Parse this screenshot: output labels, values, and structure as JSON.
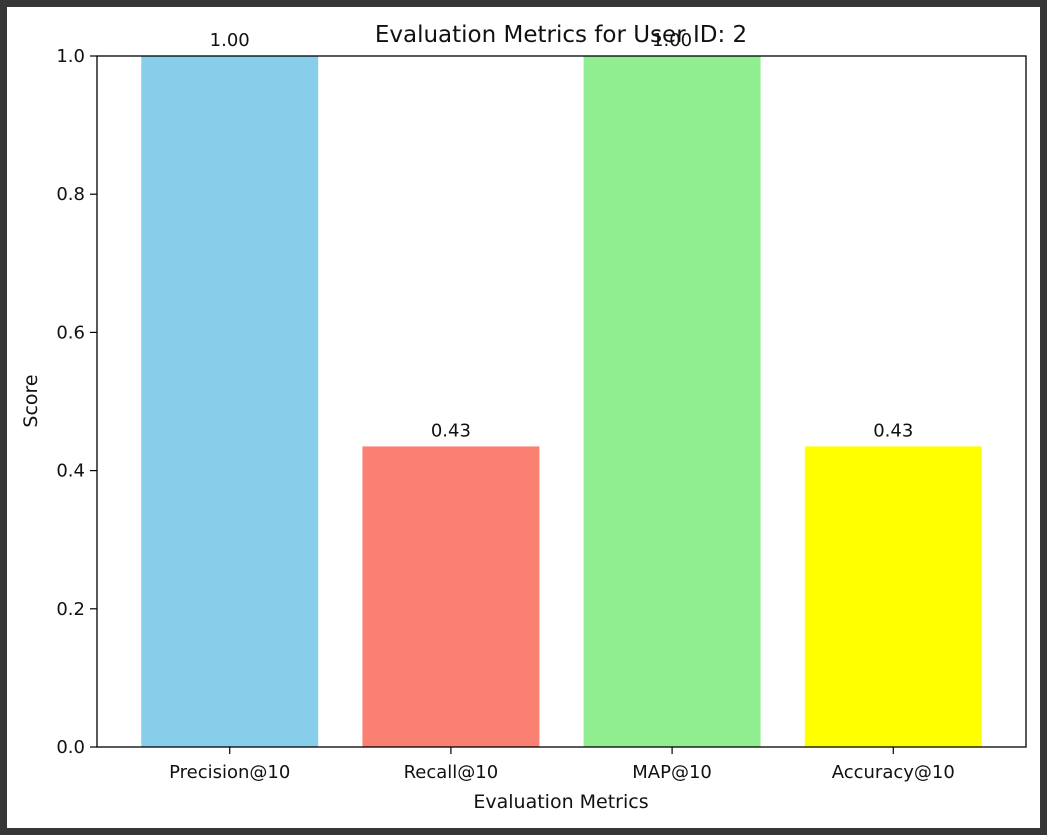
{
  "chart_data": {
    "type": "bar",
    "title": "Evaluation Metrics for User ID: 2",
    "xlabel": "Evaluation Metrics",
    "ylabel": "Score",
    "ylim": [
      0,
      1.0
    ],
    "yticks": [
      "0.0",
      "0.2",
      "0.4",
      "0.6",
      "0.8",
      "1.0"
    ],
    "categories": [
      "Precision@10",
      "Recall@10",
      "MAP@10",
      "Accuracy@10"
    ],
    "values": [
      1.0,
      0.435,
      1.0,
      0.435
    ],
    "value_labels": [
      "1.00",
      "0.43",
      "1.00",
      "0.43"
    ],
    "colors": [
      "#87ceeb",
      "#fa8072",
      "#90ee90",
      "#ffff00"
    ],
    "grid": false,
    "legend": "none"
  }
}
